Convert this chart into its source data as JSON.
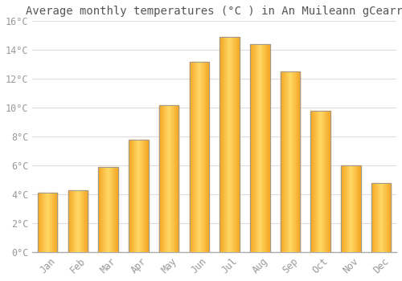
{
  "title": "Average monthly temperatures (°C ) in An Muileann gCearr",
  "months": [
    "Jan",
    "Feb",
    "Mar",
    "Apr",
    "May",
    "Jun",
    "Jul",
    "Aug",
    "Sep",
    "Oct",
    "Nov",
    "Dec"
  ],
  "values": [
    4.1,
    4.3,
    5.9,
    7.8,
    10.2,
    13.2,
    14.9,
    14.4,
    12.5,
    9.8,
    6.0,
    4.8
  ],
  "bar_color_center": "#FFD966",
  "bar_color_edge": "#F5A623",
  "bar_border_color": "#999999",
  "background_color": "#FFFFFF",
  "grid_color": "#DDDDDD",
  "text_color": "#999999",
  "ylim": [
    0,
    16
  ],
  "yticks": [
    0,
    2,
    4,
    6,
    8,
    10,
    12,
    14,
    16
  ],
  "title_fontsize": 10,
  "tick_fontsize": 8.5
}
